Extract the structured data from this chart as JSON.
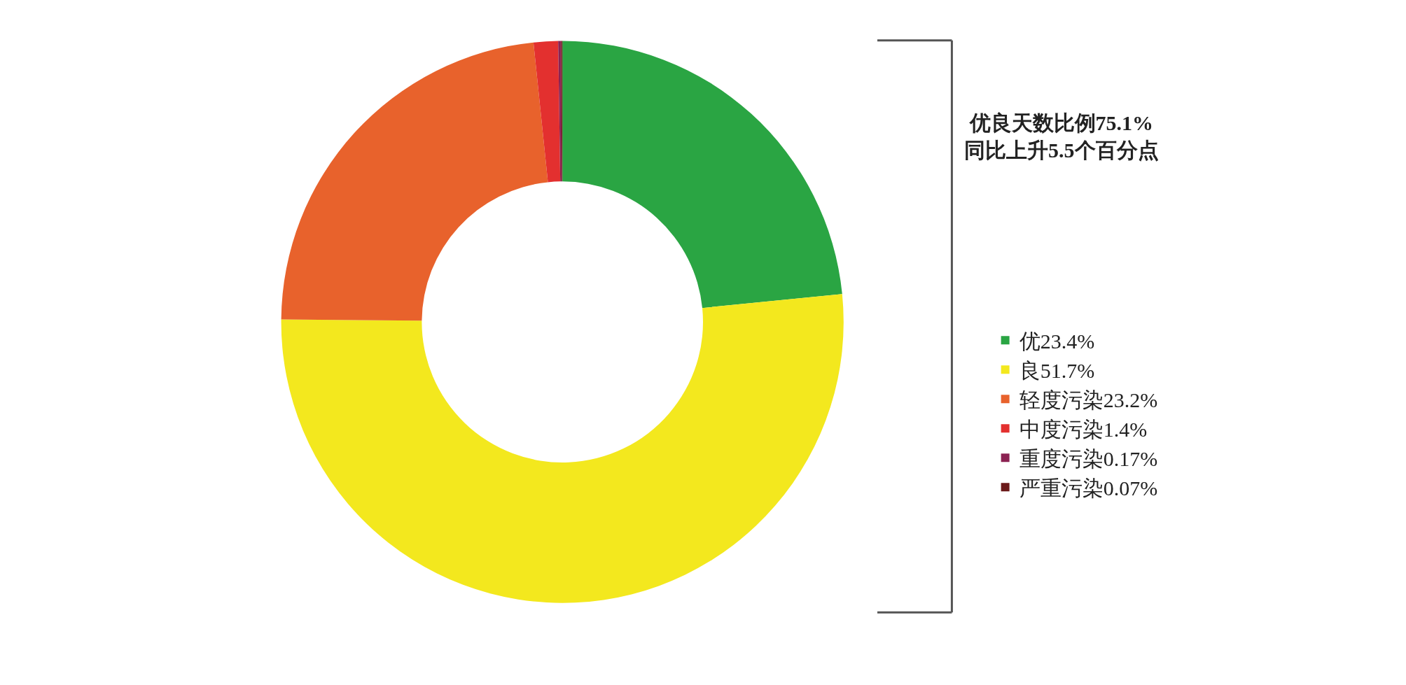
{
  "chart_data": {
    "type": "donut",
    "categories": [
      "优23.4%",
      "良51.7%",
      "轻度污染23.2%",
      "中度污染1.4%",
      "重度污染0.17%",
      "严重污染0.07%"
    ],
    "values": [
      23.4,
      51.7,
      23.2,
      1.4,
      0.17,
      0.07
    ],
    "colors": [
      "#2aa543",
      "#f3e81e",
      "#e8622c",
      "#e3302f",
      "#8b2252",
      "#6b1a1a"
    ],
    "annotations": [
      "优良天数比例75.1%\n同比上升5.5个百分点"
    ],
    "legend": "right"
  }
}
